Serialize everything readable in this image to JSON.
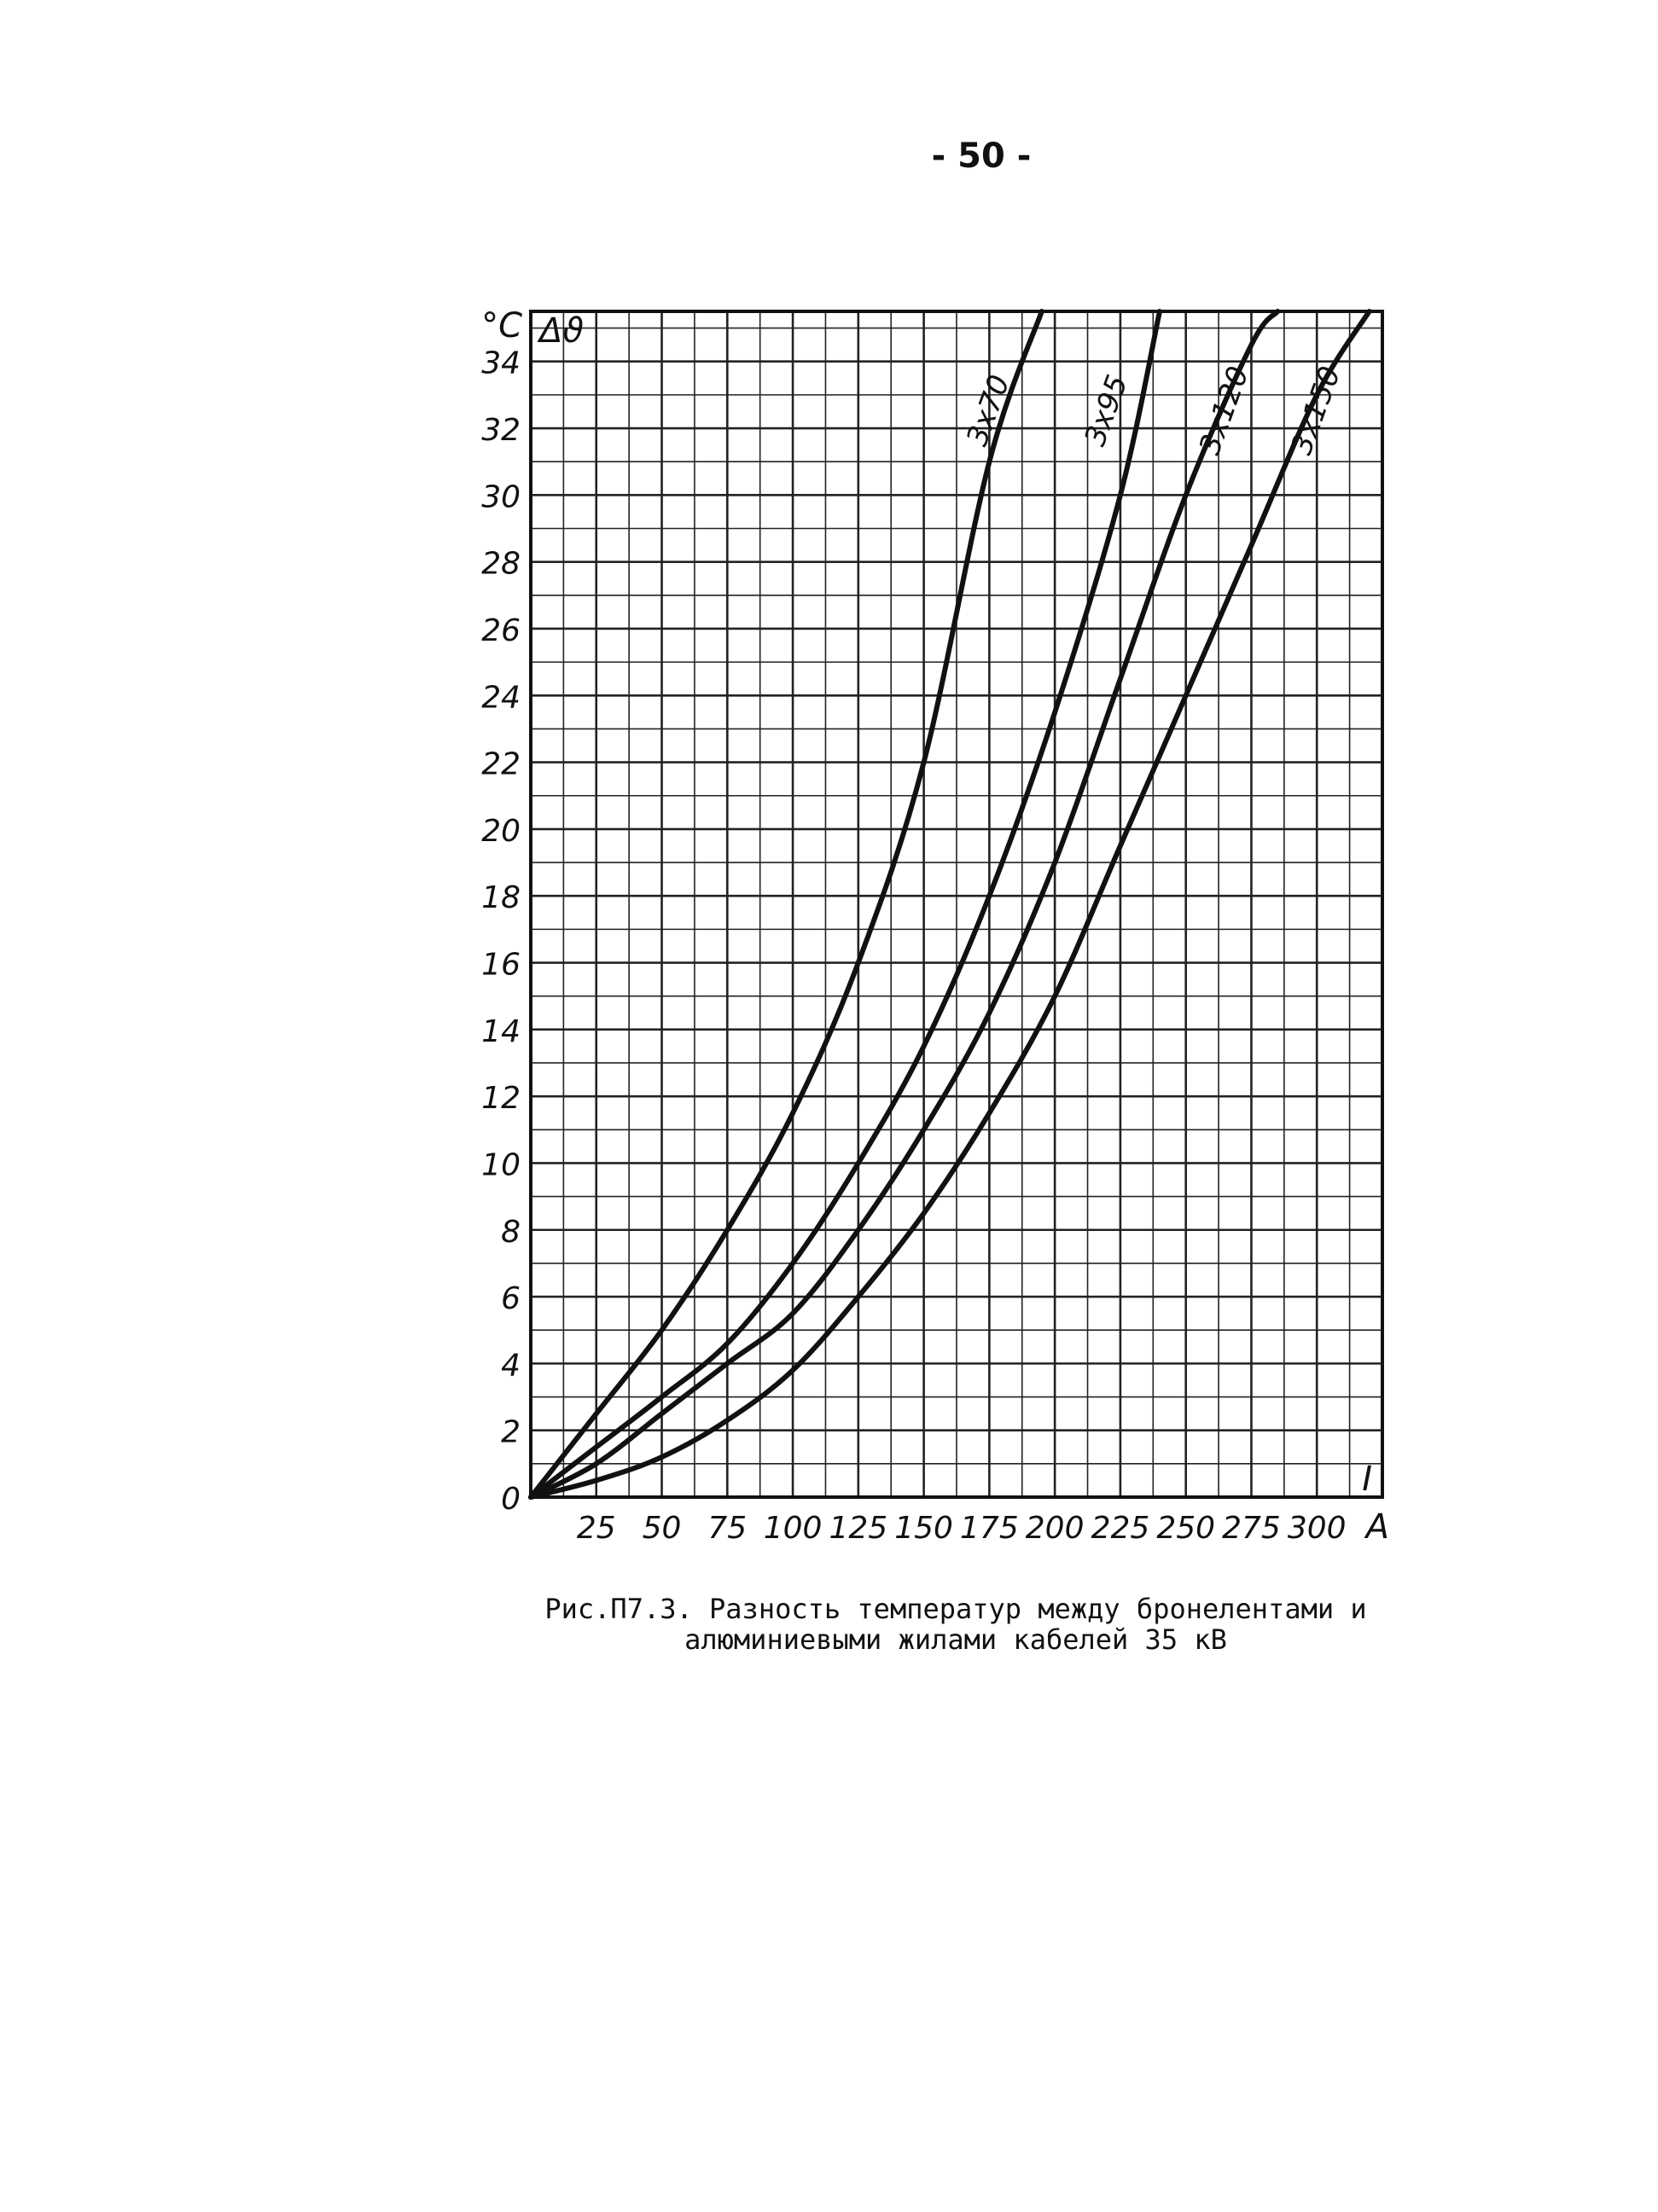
{
  "page_number": "- 50 -",
  "caption": {
    "line1": "Рис.П7.3. Разность температур между бронелентами и",
    "line2": "алюминиевыми жилами кабелей 35 кВ"
  },
  "chart_data": {
    "type": "line",
    "title": "",
    "xlabel": "I",
    "x_unit": "A",
    "ylabel": "Δϑ",
    "y_unit": "°C",
    "xlim": [
      0,
      325
    ],
    "ylim": [
      0,
      35.5
    ],
    "grid": true,
    "x_ticks": [
      {
        "value": 25,
        "label": "25"
      },
      {
        "value": 50,
        "label": "50"
      },
      {
        "value": 75,
        "label": "75"
      },
      {
        "value": 100,
        "label": "100"
      },
      {
        "value": 125,
        "label": "125"
      },
      {
        "value": 150,
        "label": "150"
      },
      {
        "value": 175,
        "label": "175"
      },
      {
        "value": 200,
        "label": "200"
      },
      {
        "value": 225,
        "label": "225"
      },
      {
        "value": 250,
        "label": "250"
      },
      {
        "value": 275,
        "label": "275"
      },
      {
        "value": 300,
        "label": "300"
      }
    ],
    "y_ticks": [
      {
        "value": 0,
        "label": "0"
      },
      {
        "value": 2,
        "label": "2"
      },
      {
        "value": 4,
        "label": "4"
      },
      {
        "value": 6,
        "label": "6"
      },
      {
        "value": 8,
        "label": "8"
      },
      {
        "value": 10,
        "label": "10"
      },
      {
        "value": 12,
        "label": "12"
      },
      {
        "value": 14,
        "label": "14"
      },
      {
        "value": 16,
        "label": "16"
      },
      {
        "value": 18,
        "label": "18"
      },
      {
        "value": 20,
        "label": "20"
      },
      {
        "value": 22,
        "label": "22"
      },
      {
        "value": 24,
        "label": "24"
      },
      {
        "value": 26,
        "label": "26"
      },
      {
        "value": 28,
        "label": "28"
      },
      {
        "value": 30,
        "label": "30"
      },
      {
        "value": 32,
        "label": "32"
      },
      {
        "value": 34,
        "label": "34"
      }
    ],
    "series": [
      {
        "name": "3x70",
        "x": [
          0,
          25,
          50,
          75,
          100,
          125,
          150,
          175,
          195
        ],
        "y": [
          0,
          2.5,
          5.0,
          8.0,
          11.5,
          16.0,
          22.0,
          31.0,
          35.5
        ]
      },
      {
        "name": "3x95",
        "x": [
          0,
          25,
          50,
          75,
          100,
          125,
          150,
          175,
          200,
          225,
          240
        ],
        "y": [
          0,
          1.5,
          3.0,
          4.6,
          7.0,
          10.0,
          13.5,
          18.0,
          23.5,
          30.0,
          35.5
        ]
      },
      {
        "name": "3x120",
        "x": [
          0,
          25,
          50,
          75,
          100,
          125,
          150,
          175,
          200,
          225,
          250,
          275,
          285
        ],
        "y": [
          0,
          1.0,
          2.5,
          4.0,
          5.5,
          8.0,
          11.0,
          14.5,
          19.0,
          24.5,
          30.0,
          34.5,
          35.5
        ]
      },
      {
        "name": "3x150",
        "x": [
          0,
          25,
          50,
          75,
          100,
          125,
          150,
          175,
          200,
          225,
          250,
          275,
          300,
          320
        ],
        "y": [
          0,
          0.5,
          1.2,
          2.3,
          3.8,
          6.0,
          8.5,
          11.5,
          15.0,
          19.5,
          24.0,
          28.5,
          33.0,
          35.5
        ]
      }
    ]
  }
}
